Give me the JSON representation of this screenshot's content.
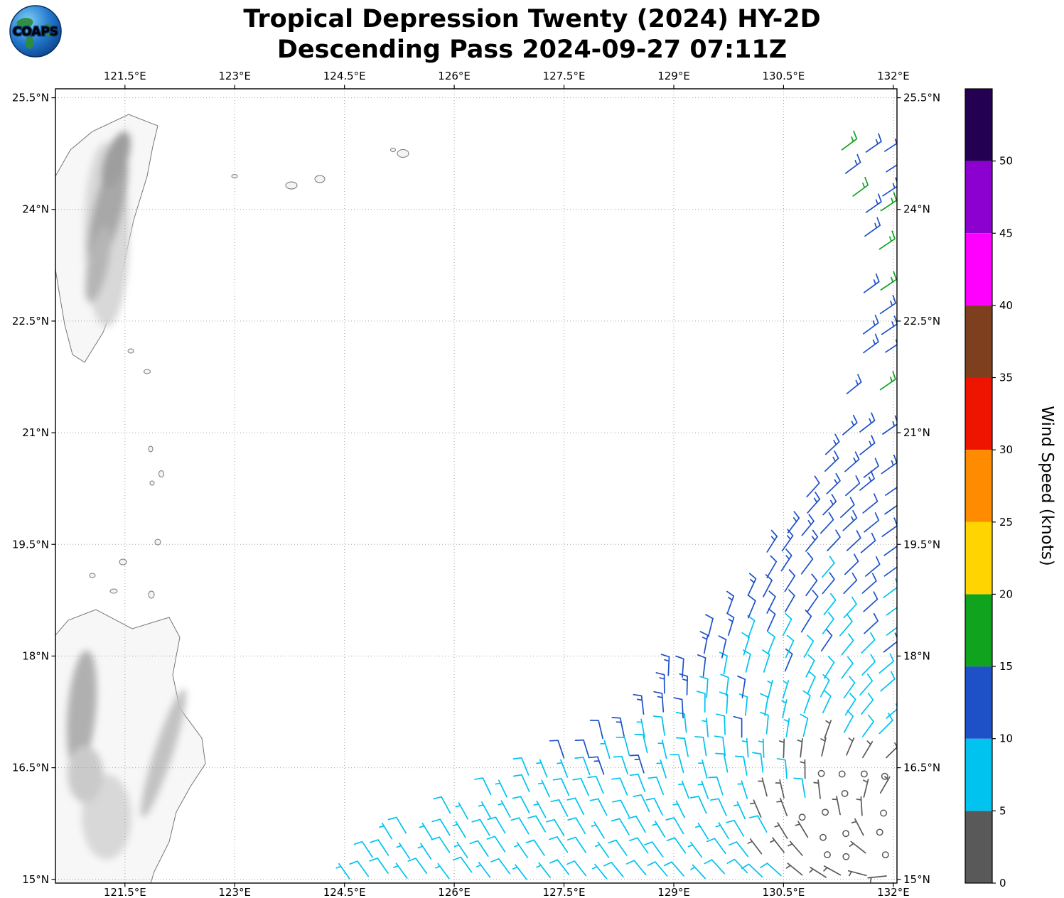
{
  "header": {
    "logo_text": "COAPS",
    "title_line1": "Tropical Depression Twenty (2024) HY-2D",
    "title_line2": "Descending Pass 2024-09-27 07:11Z"
  },
  "chart_data": {
    "type": "windbarb-map",
    "title": "Tropical Depression Twenty (2024) HY-2D",
    "subtitle": "Descending Pass 2024-09-27 07:11Z",
    "x_axis": {
      "ticks": [
        121.5,
        123,
        124.5,
        126,
        127.5,
        129,
        130.5,
        132
      ],
      "suffix": "°E",
      "range": [
        120.55,
        132.05
      ]
    },
    "y_axis": {
      "ticks": [
        15,
        16.5,
        18,
        19.5,
        21,
        22.5,
        24,
        25.5
      ],
      "suffix": "°N",
      "range": [
        14.95,
        25.62
      ]
    },
    "grid": {
      "show": true,
      "style": "dotted"
    },
    "colorbar": {
      "label": "Wind Speed (knots)",
      "ticks": [
        0,
        5,
        10,
        15,
        20,
        25,
        30,
        35,
        40,
        45,
        50
      ],
      "segments": [
        {
          "from": 0,
          "to": 5,
          "color": "#595959"
        },
        {
          "from": 5,
          "to": 10,
          "color": "#00c3f0"
        },
        {
          "from": 10,
          "to": 15,
          "color": "#1e50c8"
        },
        {
          "from": 15,
          "to": 20,
          "color": "#0fa31e"
        },
        {
          "from": 20,
          "to": 25,
          "color": "#ffd400"
        },
        {
          "from": 25,
          "to": 30,
          "color": "#ff8c00"
        },
        {
          "from": 30,
          "to": 35,
          "color": "#ee1400"
        },
        {
          "from": 35,
          "to": 40,
          "color": "#7d3f1e"
        },
        {
          "from": 40,
          "to": 45,
          "color": "#ff00ff"
        },
        {
          "from": 45,
          "to": 50,
          "color": "#8c00d0"
        },
        {
          "from": 50,
          "to": 55,
          "color": "#230052"
        }
      ]
    },
    "basemap": {
      "features": [
        "Taiwan",
        "Luzon",
        "Ryukyu Islands",
        "Batanes-Babuyan Islands"
      ]
    },
    "wind_field": {
      "units": "knots",
      "calm_symbol": "circle",
      "circulation_center": {
        "lon": 132.15,
        "lat": 15.55
      },
      "grid_step_deg": 0.27,
      "lat_min": 15.0,
      "lat_max": 24.85,
      "lon_max": 131.98,
      "swath_left_boundary": [
        [
          14.98,
          124.5
        ],
        [
          15.45,
          124.75
        ],
        [
          15.9,
          125.9
        ],
        [
          16.4,
          127.0
        ],
        [
          16.9,
          127.95
        ],
        [
          17.5,
          128.7
        ],
        [
          18.2,
          129.35
        ],
        [
          19.0,
          129.95
        ],
        [
          19.8,
          130.5
        ],
        [
          20.5,
          130.9
        ],
        [
          21.5,
          131.15
        ],
        [
          22.5,
          131.3
        ],
        [
          23.5,
          131.35
        ],
        [
          24.85,
          131.2
        ]
      ],
      "speed_model": {
        "inner_calm_radius_deg": 1.45,
        "gray_radius_deg": 2.0,
        "base_speed": 8,
        "lat_ramp_start": 17,
        "lat_ramp_rate": 1.35,
        "lat_ramp_max": 6.5,
        "edge_blue_width_deg": 0.6,
        "edge_blue_speed": 13,
        "blue_patch": {
          "lat": [
            16.2,
            17.7
          ],
          "lon": [
            127.9,
            130.7
          ],
          "fraction": 0.22,
          "speed": 13
        },
        "tangential_weight": 0.62,
        "inflow_weight": 0.38
      },
      "highlight_barbs": [
        {
          "lon": 131.45,
          "lat": 24.18,
          "speed": 17
        }
      ]
    }
  }
}
